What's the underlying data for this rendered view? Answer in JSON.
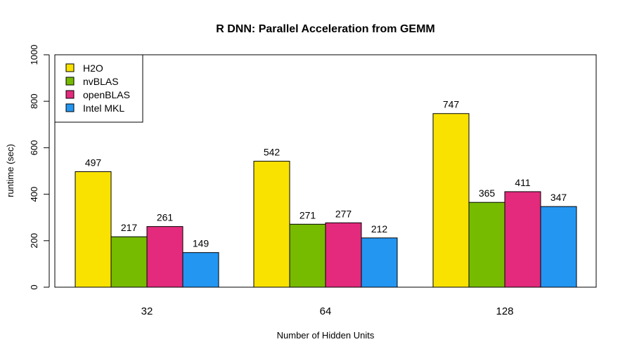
{
  "chart_data": {
    "type": "bar",
    "title": "R DNN: Parallel Acceleration from GEMM",
    "xlabel": "Number of Hidden Units",
    "ylabel": "runtime (sec)",
    "ylim": [
      0,
      1000
    ],
    "yticks": [
      0,
      200,
      400,
      600,
      800,
      1000
    ],
    "categories": [
      "32",
      "64",
      "128"
    ],
    "series": [
      {
        "name": "H2O",
        "color": "#f9e200",
        "values": [
          497,
          542,
          747
        ]
      },
      {
        "name": "nvBLAS",
        "color": "#76bb00",
        "values": [
          217,
          271,
          365
        ]
      },
      {
        "name": "openBLAS",
        "color": "#e32a7c",
        "values": [
          261,
          277,
          411
        ]
      },
      {
        "name": "Intel MKL",
        "color": "#2396f2",
        "values": [
          149,
          212,
          347
        ]
      }
    ],
    "data_labels": true,
    "grid": false,
    "legend_position": "top-left"
  }
}
